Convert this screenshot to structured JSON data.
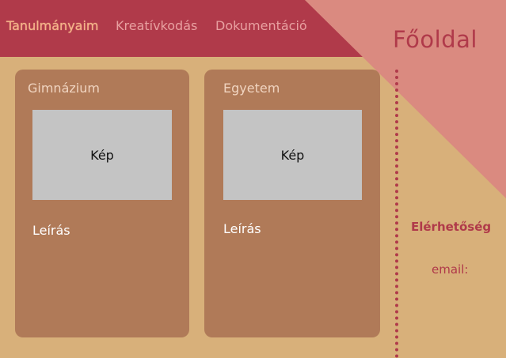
{
  "nav": {
    "items": [
      "Tanulmányaim",
      "Kreatívkodás",
      "Dokumentáció"
    ]
  },
  "home": {
    "title": "Főoldal"
  },
  "cards": [
    {
      "title": "Gimnázium",
      "image_label": "Kép",
      "description": "Leírás"
    },
    {
      "title": "Egyetem",
      "image_label": "Kép",
      "description": "Leírás"
    }
  ],
  "contact": {
    "title": "Elérhetőség",
    "email_label": "email:"
  },
  "colors": {
    "background": "#d8b07a",
    "header": "#b03a4a",
    "corner": "#da8a80",
    "card": "#b07a58",
    "image_placeholder": "#c4c4c4",
    "accent": "#b03a4a"
  }
}
